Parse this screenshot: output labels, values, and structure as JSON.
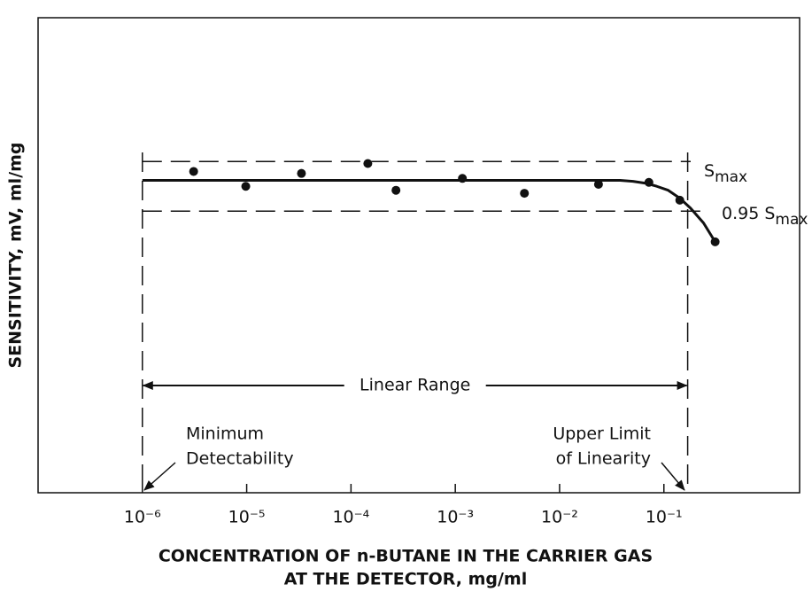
{
  "chart_data": {
    "type": "scatter",
    "x_label": [
      "CONCENTRATION OF n-BUTANE IN THE CARRIER GAS",
      "AT THE DETECTOR, mg/ml"
    ],
    "y_label": "SENSITIVITY, mV, ml/mg",
    "xscale": "log",
    "xlim": [
      1e-07,
      2
    ],
    "ylim": [
      66.6,
      114.5
    ],
    "xticks": [
      {
        "value": 1e-06,
        "label": "10⁻⁶"
      },
      {
        "value": 1e-05,
        "label": "10⁻⁵"
      },
      {
        "value": 0.0001,
        "label": "10⁻⁴"
      },
      {
        "value": 0.001,
        "label": "10⁻³"
      },
      {
        "value": 0.01,
        "label": "10⁻²"
      },
      {
        "value": 0.1,
        "label": "10⁻¹"
      }
    ],
    "x": [
      3.1e-06,
      9.8e-06,
      3.35e-05,
      0.000145,
      0.00027,
      0.00117,
      0.0046,
      0.0236,
      0.0718,
      0.142,
      0.31
    ],
    "values": [
      99.0,
      97.5,
      98.8,
      99.8,
      97.1,
      98.3,
      96.8,
      97.7,
      97.9,
      96.1,
      91.9
    ],
    "color": "#111111",
    "curve": {
      "x": [
        1e-06,
        0.038,
        0.0505,
        0.0678,
        0.0855,
        0.11,
        0.142,
        0.18,
        0.24,
        0.31
      ],
      "values": [
        98.1,
        98.1,
        98.0,
        97.8,
        97.5,
        97.1,
        96.3,
        95.3,
        93.8,
        91.9
      ]
    },
    "reference_lines": [
      {
        "value": 100,
        "label": "S",
        "label_sub": "max"
      },
      {
        "value": 95,
        "label": "0.95 S",
        "label_sub": "max"
      }
    ],
    "linear_range": {
      "label": "Linear Range",
      "x": [
        1e-06,
        0.169
      ]
    },
    "annotations": [
      {
        "lines": [
          "Minimum",
          "Detectability"
        ]
      },
      {
        "lines": [
          "Upper Limit",
          "of Linearity"
        ]
      }
    ]
  }
}
